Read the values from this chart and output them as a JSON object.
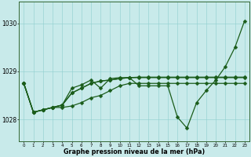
{
  "background_color": "#c8eaea",
  "grid_color": "#8ecece",
  "line_color": "#1a5c1a",
  "xlabel": "Graphe pression niveau de la mer (hPa)",
  "ylim": [
    1027.55,
    1030.45
  ],
  "xlim": [
    -0.5,
    23.5
  ],
  "yticks": [
    1028,
    1029,
    1030
  ],
  "xticks": [
    0,
    1,
    2,
    3,
    4,
    5,
    6,
    7,
    8,
    9,
    10,
    11,
    12,
    13,
    14,
    15,
    16,
    17,
    18,
    19,
    20,
    21,
    22,
    23
  ],
  "series": [
    {
      "y": [
        1028.75,
        1028.15,
        1028.2,
        1028.25,
        1028.3,
        1028.55,
        1028.65,
        1028.75,
        1028.8,
        1028.82,
        1028.85,
        1028.87,
        1028.88,
        1028.88,
        1028.88,
        1028.88,
        1028.88,
        1028.88,
        1028.88,
        1028.88,
        1028.88,
        1028.88,
        1028.88,
        1028.88
      ]
    },
    {
      "y": [
        1028.75,
        1028.15,
        1028.2,
        1028.25,
        1028.3,
        1028.55,
        1028.65,
        1028.75,
        1028.8,
        1028.82,
        1028.85,
        1028.87,
        1028.7,
        1028.7,
        1028.7,
        1028.7,
        1028.05,
        1027.82,
        1028.35,
        1028.6,
        1028.82,
        1029.1,
        1029.5,
        1030.05
      ]
    },
    {
      "y": [
        1028.75,
        1028.15,
        1028.2,
        1028.25,
        1028.3,
        1028.65,
        1028.72,
        1028.82,
        1028.65,
        1028.85,
        1028.87,
        1028.87,
        1028.87,
        1028.87,
        1028.87,
        1028.87,
        1028.87,
        1028.87,
        1028.87,
        1028.87,
        1028.87,
        1028.87,
        1028.87,
        1028.87
      ]
    },
    {
      "y": [
        1028.75,
        1028.15,
        1028.2,
        1028.25,
        1028.25,
        1028.28,
        1028.35,
        1028.45,
        1028.5,
        1028.6,
        1028.7,
        1028.75,
        1028.75,
        1028.75,
        1028.75,
        1028.75,
        1028.75,
        1028.75,
        1028.75,
        1028.75,
        1028.75,
        1028.75,
        1028.75,
        1028.75
      ]
    }
  ],
  "marker_size": 2.5,
  "linewidth": 0.9
}
